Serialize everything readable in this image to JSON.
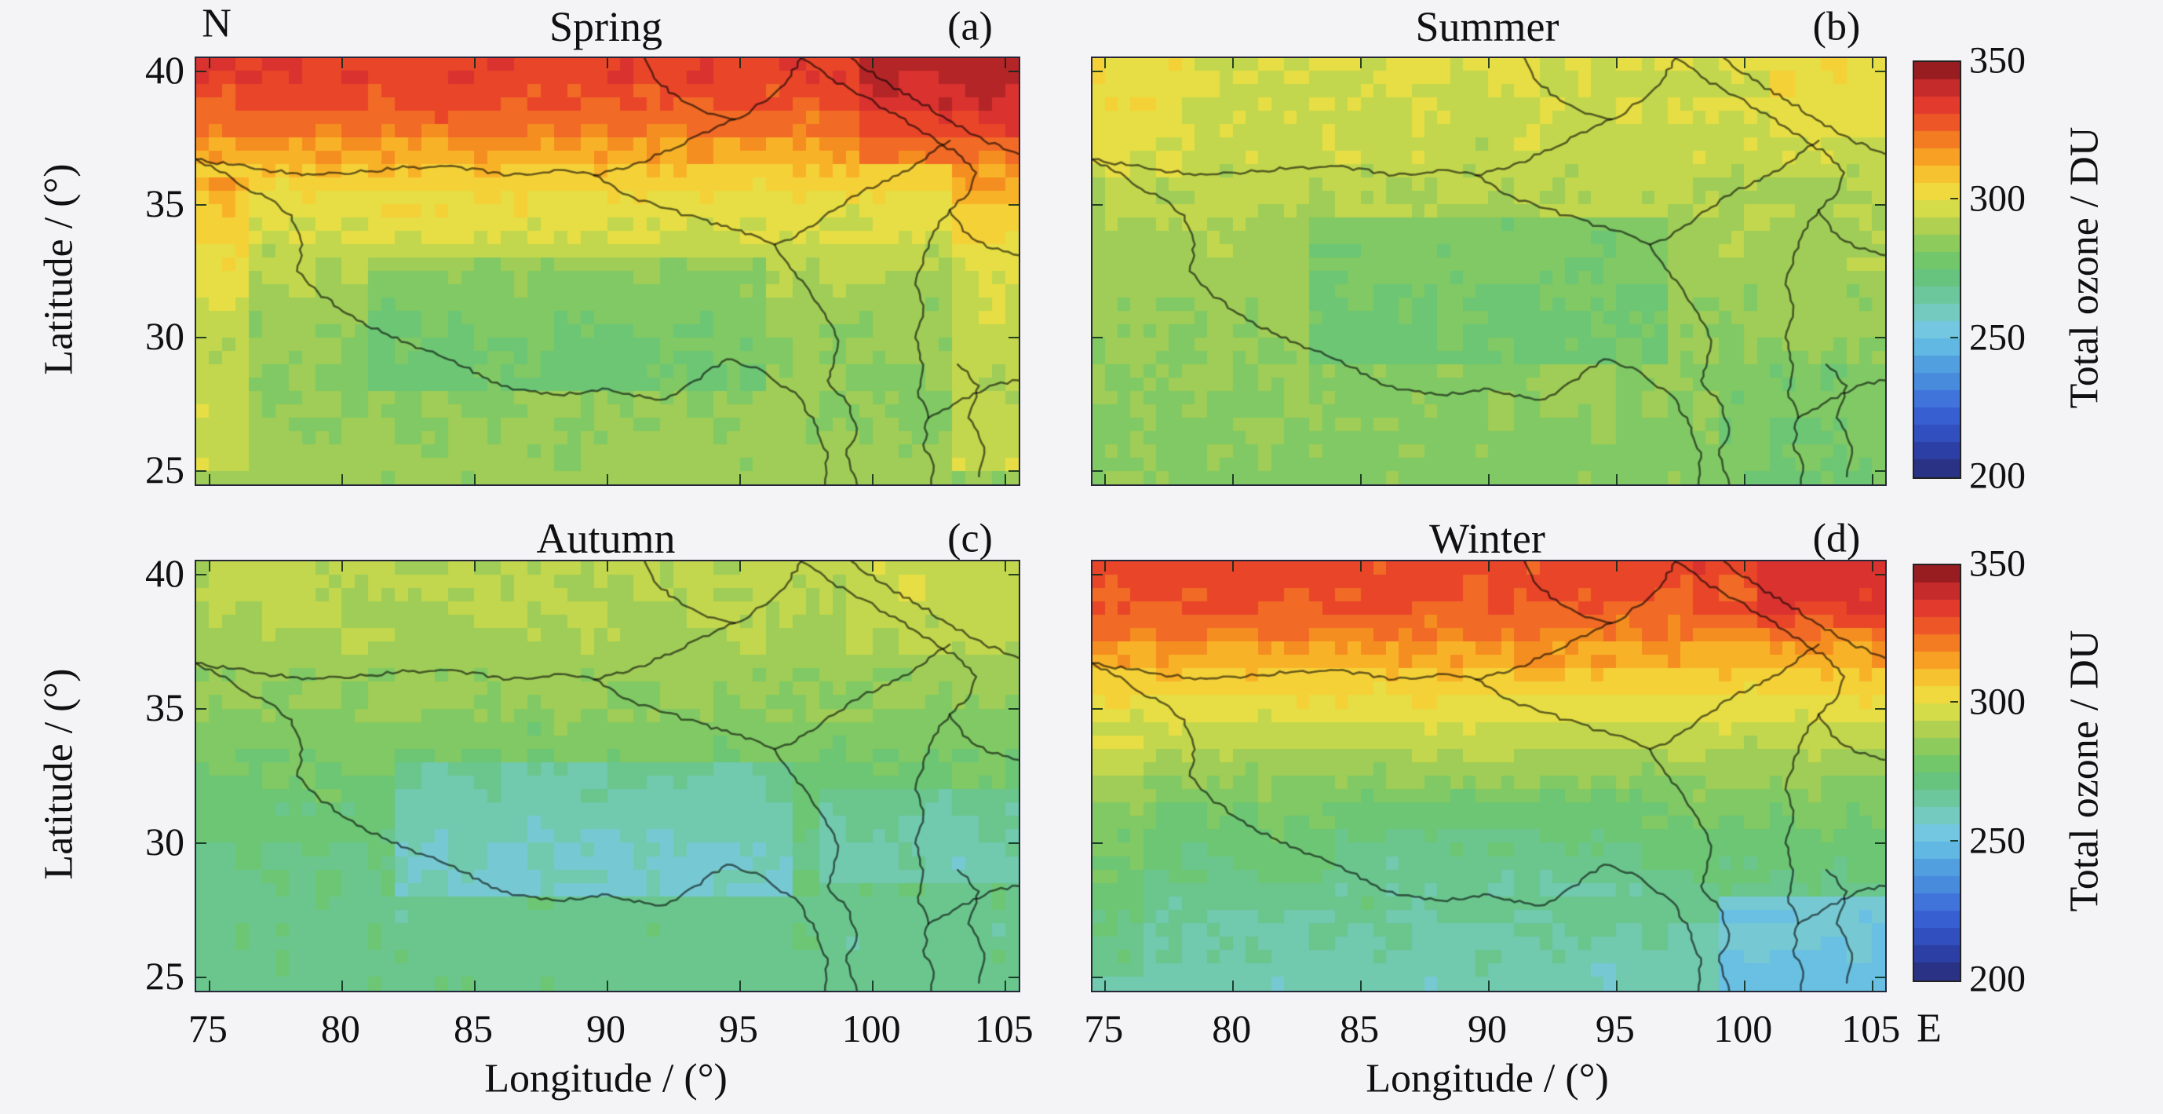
{
  "figure": {
    "background": "#f4f4f6",
    "panels": [
      {
        "id": "a",
        "title": "Spring",
        "label": "(a)"
      },
      {
        "id": "b",
        "title": "Summer",
        "label": "(b)"
      },
      {
        "id": "c",
        "title": "Autumn",
        "label": "(c)"
      },
      {
        "id": "d",
        "title": "Winter",
        "label": "(d)"
      }
    ],
    "axes": {
      "x_label": "Longitude / (°)",
      "y_label": "Latitude / (°)",
      "x_ticks": [
        75,
        80,
        85,
        90,
        95,
        100,
        105
      ],
      "y_ticks": [
        40,
        35,
        30,
        25
      ],
      "north_label": "N",
      "east_label": "E"
    },
    "colorbar": {
      "label": "Total ozone / DU",
      "ticks": [
        350,
        300,
        250,
        200
      ],
      "min": 200,
      "max": 350,
      "steps": 24
    }
  },
  "chart_data": {
    "type": "heatmap",
    "units": "DU",
    "value_range": [
      200,
      350
    ],
    "lon_range": [
      74.5,
      105.5
    ],
    "lat_range": [
      24.5,
      40.5
    ],
    "xlabel": "Longitude / (°)",
    "ylabel": "Latitude / (°)",
    "colorbar_label": "Total ozone / DU",
    "colormap_stops": [
      [
        200,
        "#272c74"
      ],
      [
        208,
        "#2b3c9e"
      ],
      [
        216,
        "#3150c0"
      ],
      [
        224,
        "#3a64d8"
      ],
      [
        232,
        "#4583dd"
      ],
      [
        240,
        "#4f9ddd"
      ],
      [
        248,
        "#63bce4"
      ],
      [
        254,
        "#76c9df"
      ],
      [
        260,
        "#75cabc"
      ],
      [
        266,
        "#6cc79b"
      ],
      [
        272,
        "#67c47d"
      ],
      [
        278,
        "#71c76a"
      ],
      [
        284,
        "#8ccb5e"
      ],
      [
        290,
        "#accf52"
      ],
      [
        296,
        "#cfdb4a"
      ],
      [
        301,
        "#ecdf43"
      ],
      [
        307,
        "#f6cf36"
      ],
      [
        313,
        "#f8af27"
      ],
      [
        319,
        "#f58d20"
      ],
      [
        325,
        "#f16a26"
      ],
      [
        331,
        "#ea4629"
      ],
      [
        337,
        "#dc3330"
      ],
      [
        344,
        "#b22428"
      ],
      [
        350,
        "#7c161a"
      ]
    ],
    "lat_centers": [
      40,
      39,
      38,
      37,
      36,
      35,
      34,
      33,
      32,
      31,
      30,
      29,
      28,
      27,
      26,
      25
    ],
    "seasons": [
      {
        "name": "Spring",
        "lat_profile_du": [
          333,
          330,
          324,
          315,
          307,
          301,
          297,
          293,
          290,
          287,
          285,
          284,
          284,
          285,
          286,
          287
        ],
        "anomalies": [
          {
            "lon": [
              81,
              96
            ],
            "lat": [
              28,
              33
            ],
            "delta_du": -7
          },
          {
            "lon": [
              99.5,
              105.5
            ],
            "lat": [
              36.5,
              40.5
            ],
            "delta_du": 9
          },
          {
            "lon": [
              74.5,
              76.5
            ],
            "lat": [
              25,
              36
            ],
            "delta_du": 9
          },
          {
            "lon": [
              103,
              105.5
            ],
            "lat": [
              25,
              36.5
            ],
            "delta_du": 8
          }
        ]
      },
      {
        "name": "Summer",
        "lat_profile_du": [
          297,
          296,
          295,
          294,
          292,
          291,
          289,
          288,
          287,
          286,
          285,
          284,
          284,
          283,
          283,
          282
        ],
        "anomalies": [
          {
            "lon": [
              83,
              97
            ],
            "lat": [
              29,
              34.5
            ],
            "delta_du": -8
          },
          {
            "lon": [
              74.5,
              78
            ],
            "lat": [
              36,
              40.5
            ],
            "delta_du": 5
          },
          {
            "lon": [
              101,
              105.5
            ],
            "lat": [
              37.5,
              40.5
            ],
            "delta_du": 5
          },
          {
            "lon": [
              99,
              105.5
            ],
            "lat": [
              24.5,
              29
            ],
            "delta_du": -4
          }
        ]
      },
      {
        "name": "Autumn",
        "lat_profile_du": [
          292,
          291,
          290,
          288,
          286,
          284,
          281,
          279,
          276,
          274,
          272,
          271,
          270,
          269,
          269,
          269
        ],
        "anomalies": [
          {
            "lon": [
              82,
              97
            ],
            "lat": [
              28,
              33
            ],
            "delta_du": -12
          },
          {
            "lon": [
              98,
              105.5
            ],
            "lat": [
              28.5,
              32
            ],
            "delta_du": -8
          },
          {
            "lon": [
              99,
              105.5
            ],
            "lat": [
              37,
              40.5
            ],
            "delta_du": 3
          }
        ]
      },
      {
        "name": "Winter",
        "lat_profile_du": [
          331,
          328,
          323,
          315,
          307,
          300,
          294,
          288,
          283,
          279,
          275,
          272,
          269,
          266,
          264,
          262
        ],
        "anomalies": [
          {
            "lon": [
              99,
              105.5
            ],
            "lat": [
              24.5,
              28
            ],
            "delta_du": -12
          },
          {
            "lon": [
              84,
              96
            ],
            "lat": [
              28,
              32
            ],
            "delta_du": -4
          },
          {
            "lon": [
              100.5,
              105.5
            ],
            "lat": [
              38,
              40.5
            ],
            "delta_du": 7
          },
          {
            "lon": [
              74.5,
              76.5
            ],
            "lat": [
              25,
              34
            ],
            "delta_du": 5
          }
        ]
      }
    ]
  }
}
